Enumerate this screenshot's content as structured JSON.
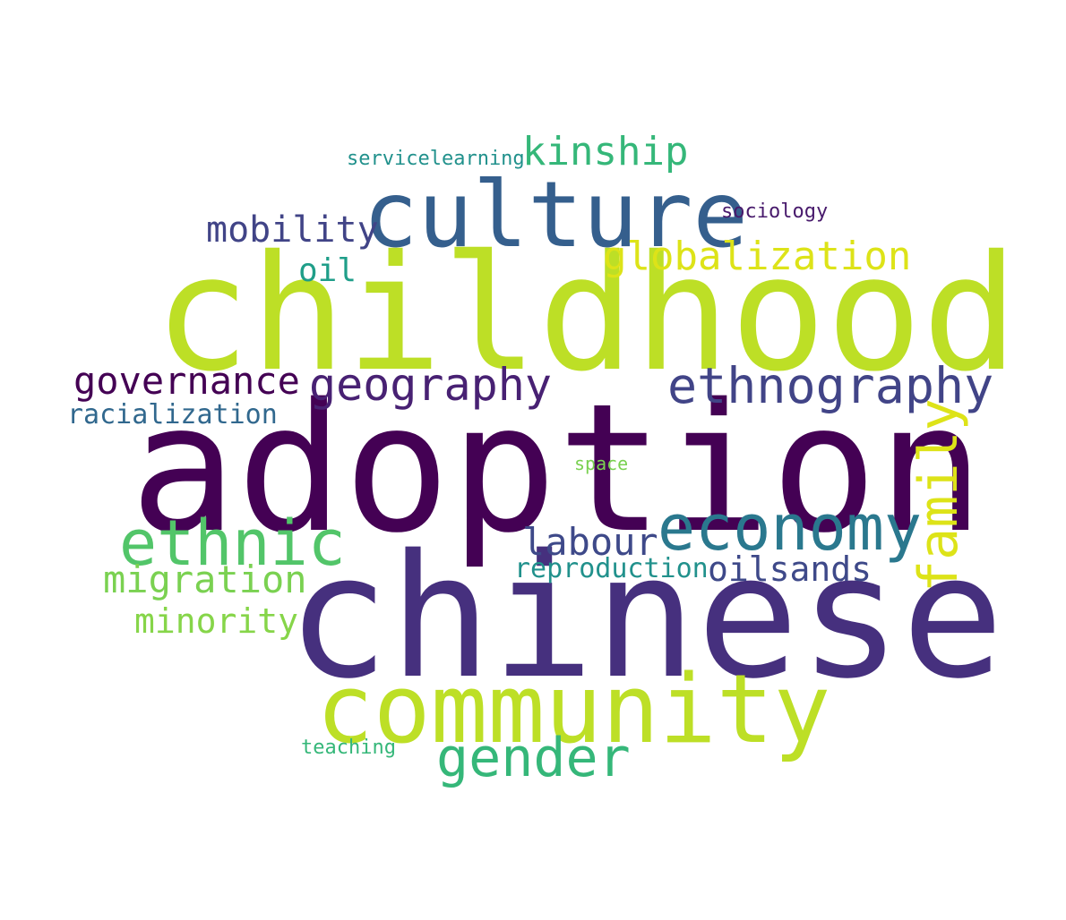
{
  "word_cloud": {
    "words": [
      {
        "text": "adoption",
        "color": "#440154"
      },
      {
        "text": "chinese",
        "color": "#46307e"
      },
      {
        "text": "childhood",
        "color": "#bddf26"
      },
      {
        "text": "community",
        "color": "#bddf26"
      },
      {
        "text": "culture",
        "color": "#355f8d"
      },
      {
        "text": "economy",
        "color": "#2a788e"
      },
      {
        "text": "ethnic",
        "color": "#52c569"
      },
      {
        "text": "ethnography",
        "color": "#414487"
      },
      {
        "text": "gender",
        "color": "#35b779"
      },
      {
        "text": "geography",
        "color": "#482173"
      },
      {
        "text": "family",
        "color": "#dde318"
      },
      {
        "text": "globalization",
        "color": "#dde318"
      },
      {
        "text": "kinship",
        "color": "#35b779"
      },
      {
        "text": "governance",
        "color": "#440154"
      },
      {
        "text": "mobility",
        "color": "#414487"
      },
      {
        "text": "migration",
        "color": "#7ad151"
      },
      {
        "text": "labour",
        "color": "#3e4989"
      },
      {
        "text": "oilsands",
        "color": "#3e4989"
      },
      {
        "text": "reproduction",
        "color": "#21918c"
      },
      {
        "text": "minority",
        "color": "#86d549"
      },
      {
        "text": "racialization",
        "color": "#31688e"
      },
      {
        "text": "oil",
        "color": "#1f9e89"
      },
      {
        "text": "sociology",
        "color": "#481a6c"
      },
      {
        "text": "servicelearning",
        "color": "#21918c"
      },
      {
        "text": "space",
        "color": "#7ad151"
      },
      {
        "text": "teaching",
        "color": "#35b779"
      }
    ]
  }
}
